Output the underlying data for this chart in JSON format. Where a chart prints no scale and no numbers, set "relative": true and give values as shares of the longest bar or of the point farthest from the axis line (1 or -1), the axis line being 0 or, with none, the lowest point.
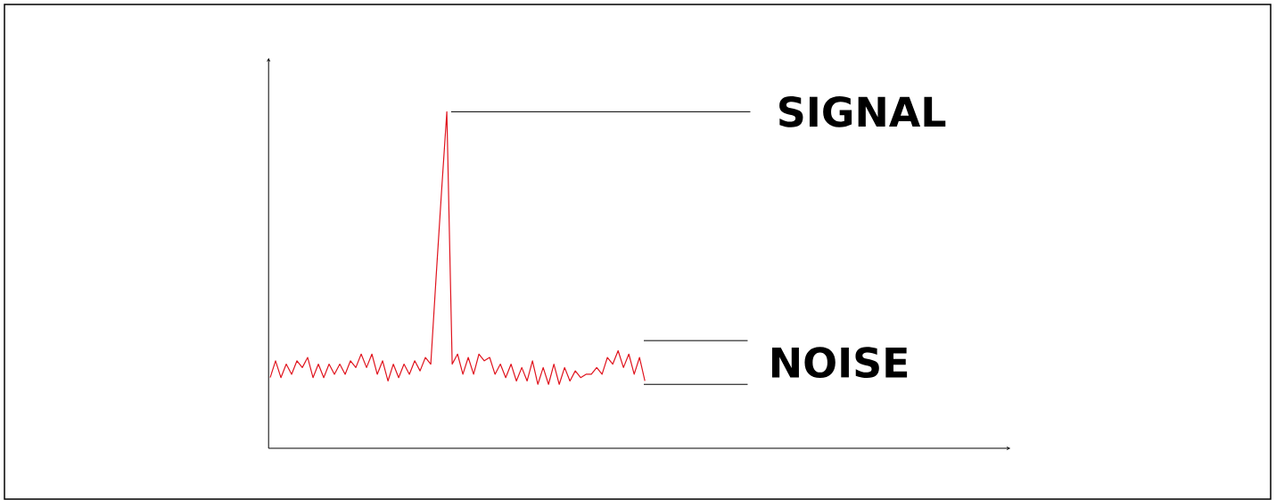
{
  "chart_data": {
    "type": "line",
    "relative": true,
    "categories": [
      null,
      null,
      null,
      null,
      null,
      null,
      null,
      null,
      null,
      null,
      null,
      null,
      null,
      null,
      null,
      null,
      null,
      null,
      null,
      null,
      null,
      null,
      null,
      null,
      null,
      null,
      null,
      null,
      null,
      null,
      null,
      null,
      null,
      null,
      null,
      null,
      null,
      null,
      null,
      null,
      null,
      null,
      null,
      null,
      null,
      null,
      null,
      null,
      null,
      null,
      null,
      null,
      null,
      null,
      null,
      null,
      null,
      null,
      null,
      null,
      null,
      null,
      null,
      null,
      null,
      null,
      null,
      null,
      null,
      null,
      null
    ],
    "series": [
      {
        "color": "#e0141e",
        "values": [
          0.21,
          0.26,
          0.21,
          0.25,
          0.22,
          0.26,
          0.24,
          0.27,
          0.21,
          0.25,
          0.21,
          0.25,
          0.22,
          0.25,
          0.22,
          0.26,
          0.24,
          0.28,
          0.24,
          0.28,
          0.22,
          0.26,
          0.2,
          0.25,
          0.21,
          0.25,
          0.22,
          0.26,
          0.23,
          0.27,
          0.25,
          0.51,
          0.76,
          1,
          0.25,
          0.28,
          0.22,
          0.27,
          0.22,
          0.28,
          0.26,
          0.27,
          0.22,
          0.25,
          0.21,
          0.25,
          0.2,
          0.24,
          0.2,
          0.26,
          0.19,
          0.24,
          0.19,
          0.25,
          0.19,
          0.24,
          0.2,
          0.23,
          0.21,
          0.22,
          0.22,
          0.24,
          0.22,
          0.27,
          0.25,
          0.29,
          0.24,
          0.28,
          0.22,
          0.27,
          0.2
        ]
      }
    ],
    "annotations": [
      "SIGNAL",
      "NOISE"
    ]
  }
}
